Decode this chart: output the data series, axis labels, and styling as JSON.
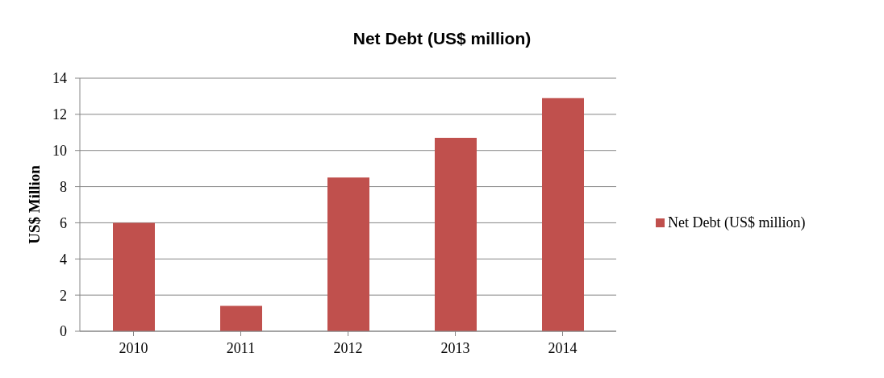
{
  "chart_data": {
    "type": "bar",
    "title": "Net Debt (US$ million)",
    "ylabel": "US$ Million",
    "categories": [
      "2010",
      "2011",
      "2012",
      "2013",
      "2014"
    ],
    "series": [
      {
        "name": "Net Debt (US$ million)",
        "color": "#c0504d",
        "values": [
          6.0,
          1.4,
          8.5,
          10.7,
          12.9
        ]
      }
    ],
    "ylim": [
      0,
      14
    ],
    "yticks": [
      0,
      2,
      4,
      6,
      8,
      10,
      12,
      14
    ],
    "grid": "y",
    "legend": "right"
  }
}
